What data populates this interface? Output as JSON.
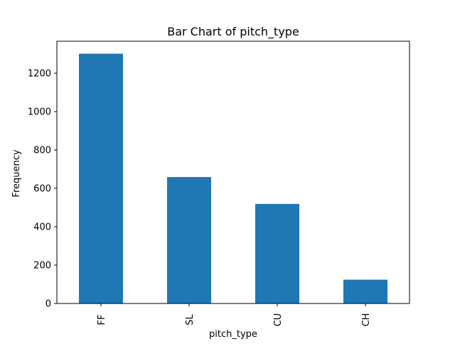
{
  "chart_data": {
    "type": "bar",
    "title": "Bar Chart of pitch_type",
    "xlabel": "pitch_type",
    "ylabel": "Frequency",
    "categories": [
      "FF",
      "SL",
      "CU",
      "CH"
    ],
    "values": [
      1302,
      659,
      519,
      124
    ],
    "ylim": [
      0,
      1367
    ],
    "yticks": [
      0,
      200,
      400,
      600,
      800,
      1000,
      1200
    ],
    "ytick_labels": [
      "0",
      "200",
      "400",
      "600",
      "800",
      "1000",
      "1200"
    ],
    "grid": false,
    "legend": "none",
    "bar_color": "#1f77b4"
  }
}
